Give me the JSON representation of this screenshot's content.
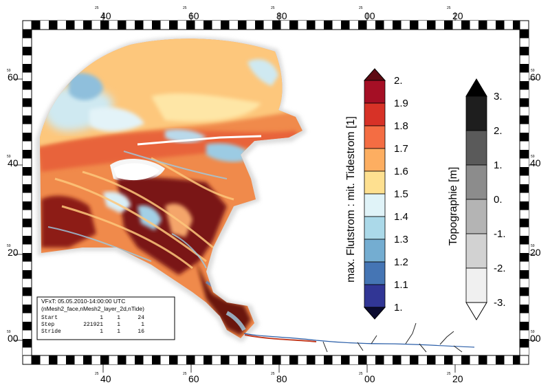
{
  "coord_labels": {
    "top_bottom": [
      "40",
      "60",
      "80",
      "00",
      "20"
    ],
    "left_right": [
      "60",
      "40",
      "20",
      "00"
    ],
    "small_top": [
      "25",
      "25",
      "25",
      "25",
      "25"
    ],
    "small_side": [
      "59",
      "59",
      "59",
      "59"
    ]
  },
  "legend_flow": {
    "title": "max. Flutstrom : mit. Tidestrom [1]",
    "ticks": [
      "2.",
      "1.9",
      "1.8",
      "1.7",
      "1.6",
      "1.5",
      "1.4",
      "1.3",
      "1.2",
      "1.1",
      "1."
    ],
    "colors": [
      "#a50f25",
      "#d73227",
      "#f46d43",
      "#fdae61",
      "#fee090",
      "#e0f3f8",
      "#abd9e9",
      "#74add1",
      "#4575b4",
      "#313695"
    ],
    "over_color": "#5e0a12",
    "under_color": "#0b0b30"
  },
  "legend_topo": {
    "title": "Topographie [m]",
    "ticks": [
      "3.",
      "2.",
      "1.",
      "0.",
      "-1.",
      "-2.",
      "-3."
    ],
    "colors": [
      "#1e1e1e",
      "#5a5a5a",
      "#8c8c8c",
      "#b4b4b4",
      "#d2d2d2",
      "#f0f0f0"
    ],
    "over_color": "#000000",
    "under_color": "#ffffff"
  },
  "info_box": {
    "line1": "VFxT: 05.05.2010-14:00:00 UTC",
    "line2": "(nMesh2_face,nMesh2_layer_2d,nTide)",
    "rows": [
      [
        "Start",
        "1",
        "1",
        "24"
      ],
      [
        "Step",
        "221921",
        "1",
        "1"
      ],
      [
        "Stride",
        "1",
        "1",
        "16"
      ]
    ]
  }
}
